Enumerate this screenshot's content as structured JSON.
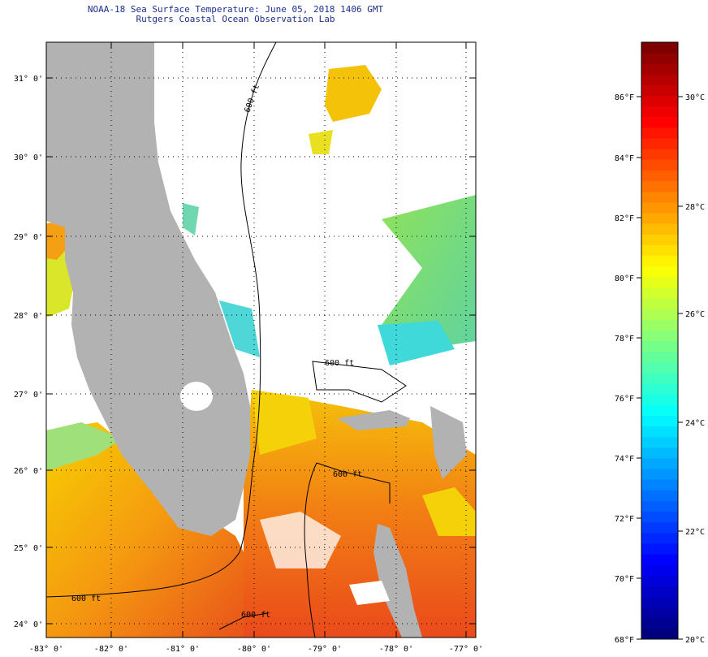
{
  "header": {
    "title_line1": "NOAA-18 Sea Surface Temperature:  June 05, 2018 1406 GMT",
    "title_line2": "Rutgers Coastal Ocean Observation Lab"
  },
  "map": {
    "lat_labels": [
      "31° 0'",
      "30° 0'",
      "29° 0'",
      "28° 0'",
      "27° 0'",
      "26° 0'",
      "25° 0'",
      "24° 0'"
    ],
    "lon_labels": [
      "-83° 0'",
      "-82° 0'",
      "-81° 0'",
      "-80° 0'",
      "-79° 0'",
      "-78° 0'",
      "-77° 0'"
    ],
    "contour_label": "600 ft",
    "contour_label_variant": "600 ft",
    "land_color": "#b2b2b2",
    "cloud_color": "#ffffff"
  },
  "colorbar": {
    "fahrenheit_labels": [
      "86°F",
      "84°F",
      "82°F",
      "80°F",
      "78°F",
      "76°F",
      "74°F",
      "72°F",
      "70°F",
      "68°F"
    ],
    "celsius_labels": [
      "30°C",
      "28°C",
      "26°C",
      "24°C",
      "22°C",
      "20°C"
    ],
    "colors": [
      "#00007f",
      "#0000ff",
      "#007fff",
      "#00ffff",
      "#7fff7f",
      "#ffff00",
      "#ff7f00",
      "#ff0000",
      "#7f0000"
    ]
  }
}
